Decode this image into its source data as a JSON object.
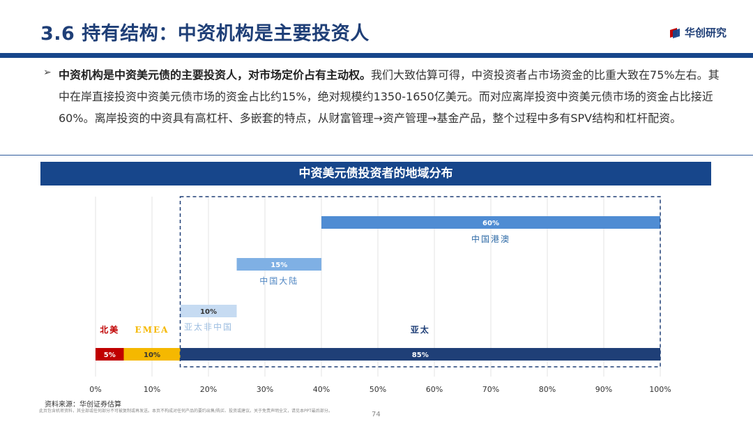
{
  "page": {
    "title": "3.6 持有结构：中资机构是主要投资人",
    "logo_text": "华创研究",
    "brand_color": "#17468b",
    "bullet_lead": "中资机构是中资美元债的主要投资人，对市场定价占有主动权。",
    "bullet_body": "我们大致估算可得，中资投资者占市场资金的比重大致在75%左右。其中在岸直接投资中资美元债市场的资金占比约15%，绝对规模约1350-1650亿美元。而对应离岸投资中资美元债市场的资金占比接近60%。离岸投资的中资具有高杠杆、多嵌套的特点，从财富管理→资产管理→基金产品，整个过程中多有SPV结构和杠杆配资。",
    "chart_banner": "中资美元债投资者的地域分布",
    "source": "资料来源：华创证券估算",
    "disclaimer": "此页包含机密资料，其全部或任何部分不可被复制或再发送。本页不构成对任何产品的要约出售/购买、投资或建议。关于免责声明全文，请见本PPT最后部分。",
    "page_number": "74"
  },
  "chart_data": {
    "type": "bar",
    "subtype": "floating-horizontal-bar",
    "xlim": [
      0,
      100
    ],
    "x_ticks": [
      "0%",
      "10%",
      "20%",
      "30%",
      "40%",
      "50%",
      "60%",
      "70%",
      "80%",
      "90%",
      "100%"
    ],
    "grid": true,
    "bars": [
      {
        "label": "中国港澳",
        "start": 40,
        "end": 100,
        "value_label": "60%",
        "color": "#4f8cd3",
        "label_color": "#2e6aa6",
        "value_label_color": "#ffffff"
      },
      {
        "label": "中国大陆",
        "start": 25,
        "end": 40,
        "value_label": "15%",
        "color": "#7fb0e4",
        "label_color": "#4f86c2",
        "value_label_color": "#ffffff"
      },
      {
        "label": "亚太非中国",
        "start": 15,
        "end": 25,
        "value_label": "10%",
        "color": "#c6dbf2",
        "label_color": "#9bbce0",
        "value_label_color": "#333333"
      },
      {
        "label": "北美",
        "start": 0,
        "end": 5,
        "value_label": "5%",
        "color": "#c00000",
        "label_color": "#c00000",
        "value_label_color": "#ffffff"
      },
      {
        "label": "EMEA",
        "start": 5,
        "end": 15,
        "value_label": "10%",
        "color": "#f5b800",
        "label_color": "#f5b800",
        "value_label_color": "#333333"
      },
      {
        "label": "亚太",
        "start": 15,
        "end": 100,
        "value_label": "85%",
        "color": "#1f3f77",
        "label_color": "#1f3f77",
        "value_label_color": "#ffffff"
      }
    ],
    "highlight_box": {
      "start": 15,
      "end": 100,
      "style": "dashed",
      "color": "#1f3f77"
    }
  }
}
